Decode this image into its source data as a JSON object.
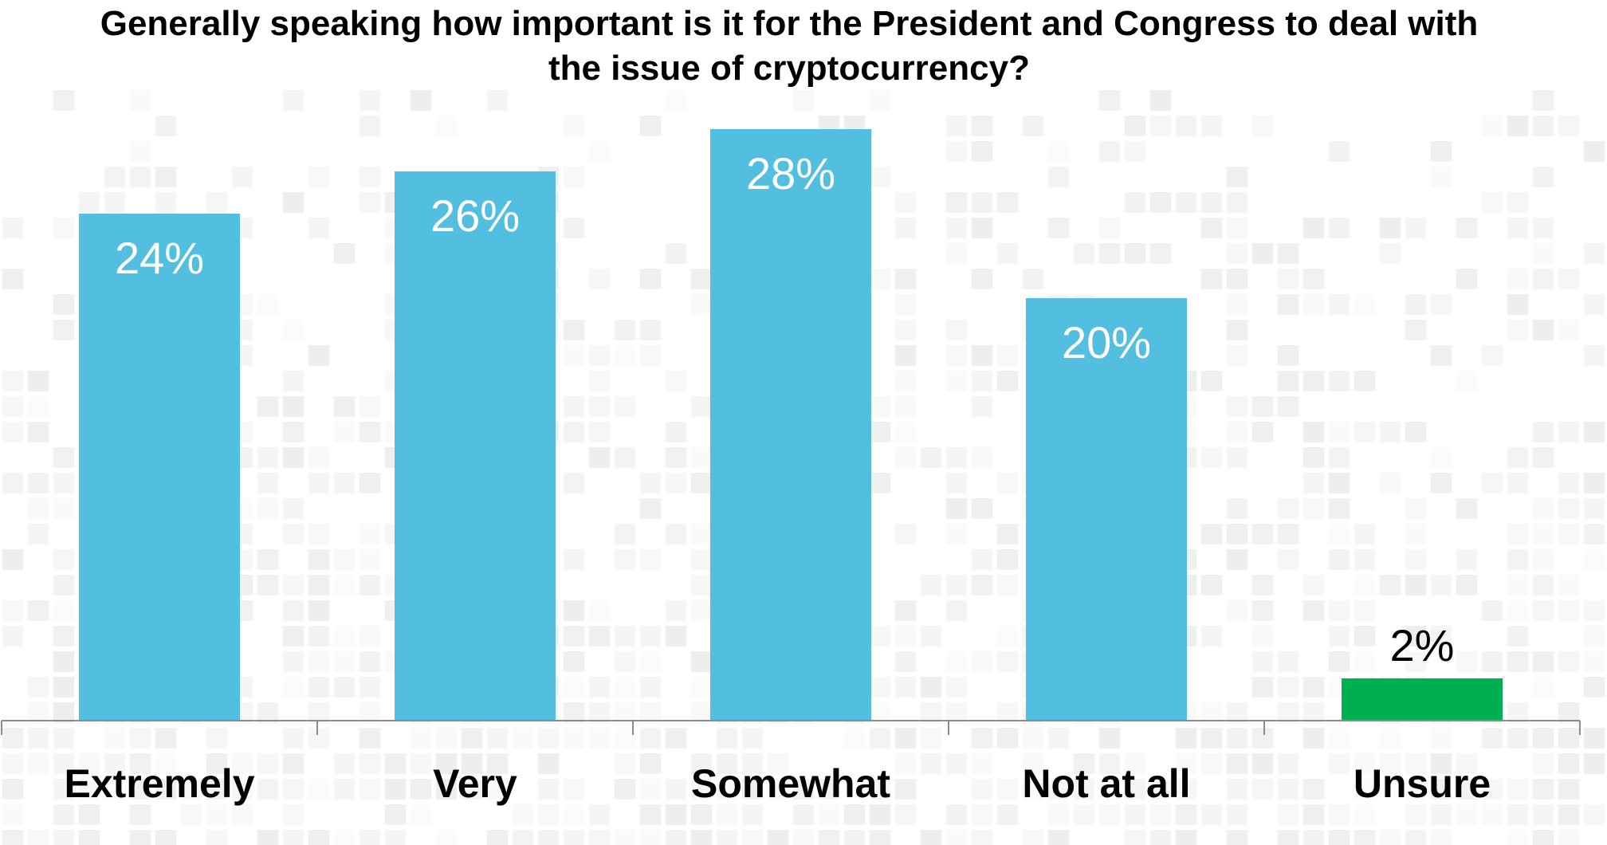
{
  "chart_data": {
    "type": "bar",
    "title": "Generally speaking how important is it for the President and Congress to deal with the issue of cryptocurrency?",
    "categories": [
      "Extremely",
      "Very",
      "Somewhat",
      "Not at all",
      "Unsure"
    ],
    "values": [
      24,
      26,
      28,
      20,
      2
    ],
    "value_labels": [
      "24%",
      "26%",
      "28%",
      "20%",
      "2%"
    ],
    "colors": [
      "#52bfe0",
      "#52bfe0",
      "#52bfe0",
      "#52bfe0",
      "#00b050"
    ],
    "ylim": [
      0,
      35
    ],
    "grid": false,
    "legend": "none",
    "value_label_position": [
      "inside-top",
      "inside-top",
      "inside-top",
      "inside-top",
      "above"
    ],
    "value_label_colors": [
      "#ffffff",
      "#ffffff",
      "#ffffff",
      "#ffffff",
      "#000000"
    ]
  }
}
